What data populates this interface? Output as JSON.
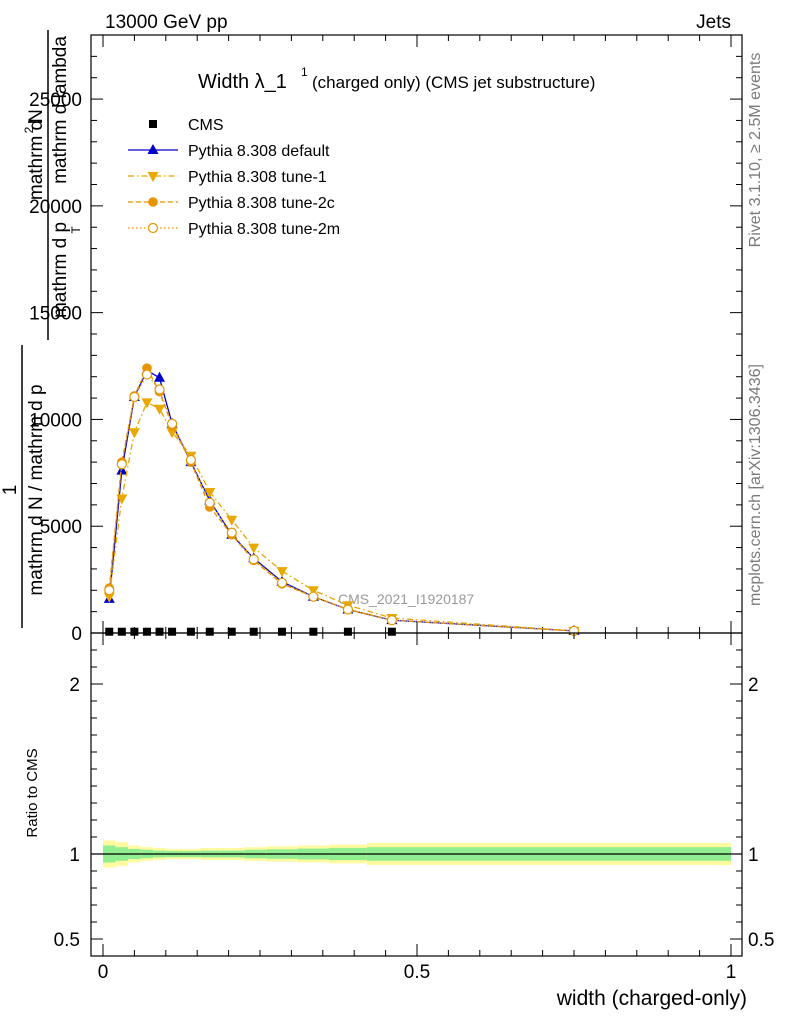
{
  "header": {
    "left": "13000 GeV pp",
    "right": "Jets"
  },
  "plot_title": {
    "main": "Width λ_1",
    "superscript": "1",
    "suffix": "(charged only) (CMS jet substructure)"
  },
  "side_labels": {
    "rivet": "Rivet 3.1.10, ≥ 2.5M events",
    "mcplots": "mcplots.cern.ch [arXiv:1306.3436]"
  },
  "watermark": "CMS_2021_I1920187",
  "y_axis_label": {
    "numerator_1": "1",
    "denominator_1": "mathrm d N / mathrm d p",
    "numerator_2": "mathrm d",
    "numerator_2_sup": "2",
    "numerator_2_rest": "N",
    "denominator_2": "mathrm d p",
    "denominator_2_rest": "mathrm d lambda",
    "sub_t": "T"
  },
  "ratio_ylabel": "Ratio to CMS",
  "xlabel": "width (charged-only)",
  "legend": [
    {
      "label": "CMS",
      "color": "#000000",
      "marker": "square",
      "dash": "none"
    },
    {
      "label": "Pythia 8.308 default",
      "color": "#0000cc",
      "marker": "triangle-up",
      "dash": "solid"
    },
    {
      "label": "Pythia 8.308 tune-1",
      "color": "#e8a800",
      "marker": "triangle-down",
      "dash": "dashdot"
    },
    {
      "label": "Pythia 8.308 tune-2c",
      "color": "#e69500",
      "marker": "circle",
      "dash": "dashed"
    },
    {
      "label": "Pythia 8.308 tune-2m",
      "color": "#e69500",
      "marker": "circle-open",
      "dash": "dotted"
    }
  ],
  "chart_data": [
    {
      "type": "line",
      "panel": "main",
      "xlim": [
        0,
        1
      ],
      "ylim": [
        0,
        28000
      ],
      "x_ticks": [
        0,
        0.5,
        1
      ],
      "y_ticks": [
        0,
        5000,
        10000,
        15000,
        20000,
        25000
      ],
      "y_tick_labels": [
        "0",
        "5000",
        "10000",
        "15000",
        "20000",
        "25000"
      ],
      "series": [
        {
          "name": "CMS",
          "x": [
            0.01,
            0.03,
            0.05,
            0.07,
            0.09,
            0.11,
            0.14,
            0.17,
            0.205,
            0.24,
            0.285,
            0.335,
            0.39,
            0.46
          ],
          "y": [
            60,
            60,
            60,
            60,
            60,
            60,
            60,
            60,
            60,
            60,
            60,
            60,
            60,
            60
          ]
        },
        {
          "name": "Pythia 8.308 default",
          "x": [
            0.01,
            0.03,
            0.05,
            0.07,
            0.09,
            0.11,
            0.14,
            0.17,
            0.205,
            0.24,
            0.285,
            0.335,
            0.39,
            0.46,
            0.75
          ],
          "y": [
            1600,
            7600,
            11050,
            12300,
            11950,
            9800,
            8000,
            6200,
            4600,
            3500,
            2400,
            1700,
            1100,
            600,
            100
          ]
        },
        {
          "name": "Pythia 8.308 tune-1",
          "x": [
            0.01,
            0.03,
            0.05,
            0.07,
            0.09,
            0.11,
            0.14,
            0.17,
            0.205,
            0.24,
            0.285,
            0.335,
            0.39,
            0.46,
            0.75
          ],
          "y": [
            1700,
            6300,
            9400,
            10800,
            10500,
            9400,
            8300,
            6600,
            5300,
            4000,
            2900,
            2000,
            1300,
            700,
            100
          ]
        },
        {
          "name": "Pythia 8.308 tune-2c",
          "x": [
            0.01,
            0.03,
            0.05,
            0.07,
            0.09,
            0.11,
            0.14,
            0.17,
            0.205,
            0.24,
            0.285,
            0.335,
            0.39,
            0.46,
            0.75
          ],
          "y": [
            2100,
            8000,
            11100,
            12400,
            11300,
            9700,
            8000,
            5900,
            4600,
            3400,
            2300,
            1700,
            1100,
            600,
            100
          ]
        },
        {
          "name": "Pythia 8.308 tune-2m",
          "x": [
            0.01,
            0.03,
            0.05,
            0.07,
            0.09,
            0.11,
            0.14,
            0.17,
            0.205,
            0.24,
            0.285,
            0.335,
            0.39,
            0.46,
            0.75
          ],
          "y": [
            2000,
            7900,
            11050,
            12100,
            11400,
            9800,
            8100,
            6100,
            4700,
            3450,
            2350,
            1700,
            1100,
            600,
            100
          ]
        }
      ]
    },
    {
      "type": "area",
      "panel": "ratio",
      "ylabel": "Ratio to CMS",
      "xlabel": "width (charged-only)",
      "xlim": [
        0,
        1
      ],
      "ylim": [
        0.4,
        2.3
      ],
      "x_ticks": [
        0,
        0.5,
        1
      ],
      "x_tick_labels": [
        "0",
        "0.5",
        "1"
      ],
      "y_ticks": [
        0.5,
        1,
        2
      ],
      "y_tick_labels": [
        "0.5",
        "1",
        "2"
      ],
      "reference_line": 1.0,
      "bands": {
        "bin_edges": [
          0,
          0.02,
          0.04,
          0.06,
          0.08,
          0.1,
          0.12,
          0.155,
          0.185,
          0.225,
          0.26,
          0.31,
          0.36,
          0.42,
          0.5,
          1.0
        ],
        "outer_halfwidth": [
          0.08,
          0.07,
          0.05,
          0.04,
          0.035,
          0.03,
          0.03,
          0.035,
          0.035,
          0.04,
          0.045,
          0.05,
          0.055,
          0.065,
          0.065
        ],
        "inner_halfwidth": [
          0.05,
          0.04,
          0.03,
          0.025,
          0.02,
          0.018,
          0.018,
          0.02,
          0.02,
          0.025,
          0.028,
          0.032,
          0.036,
          0.04,
          0.04
        ],
        "outer_color": "#fffaa0",
        "inner_color": "#90ee90"
      }
    }
  ]
}
